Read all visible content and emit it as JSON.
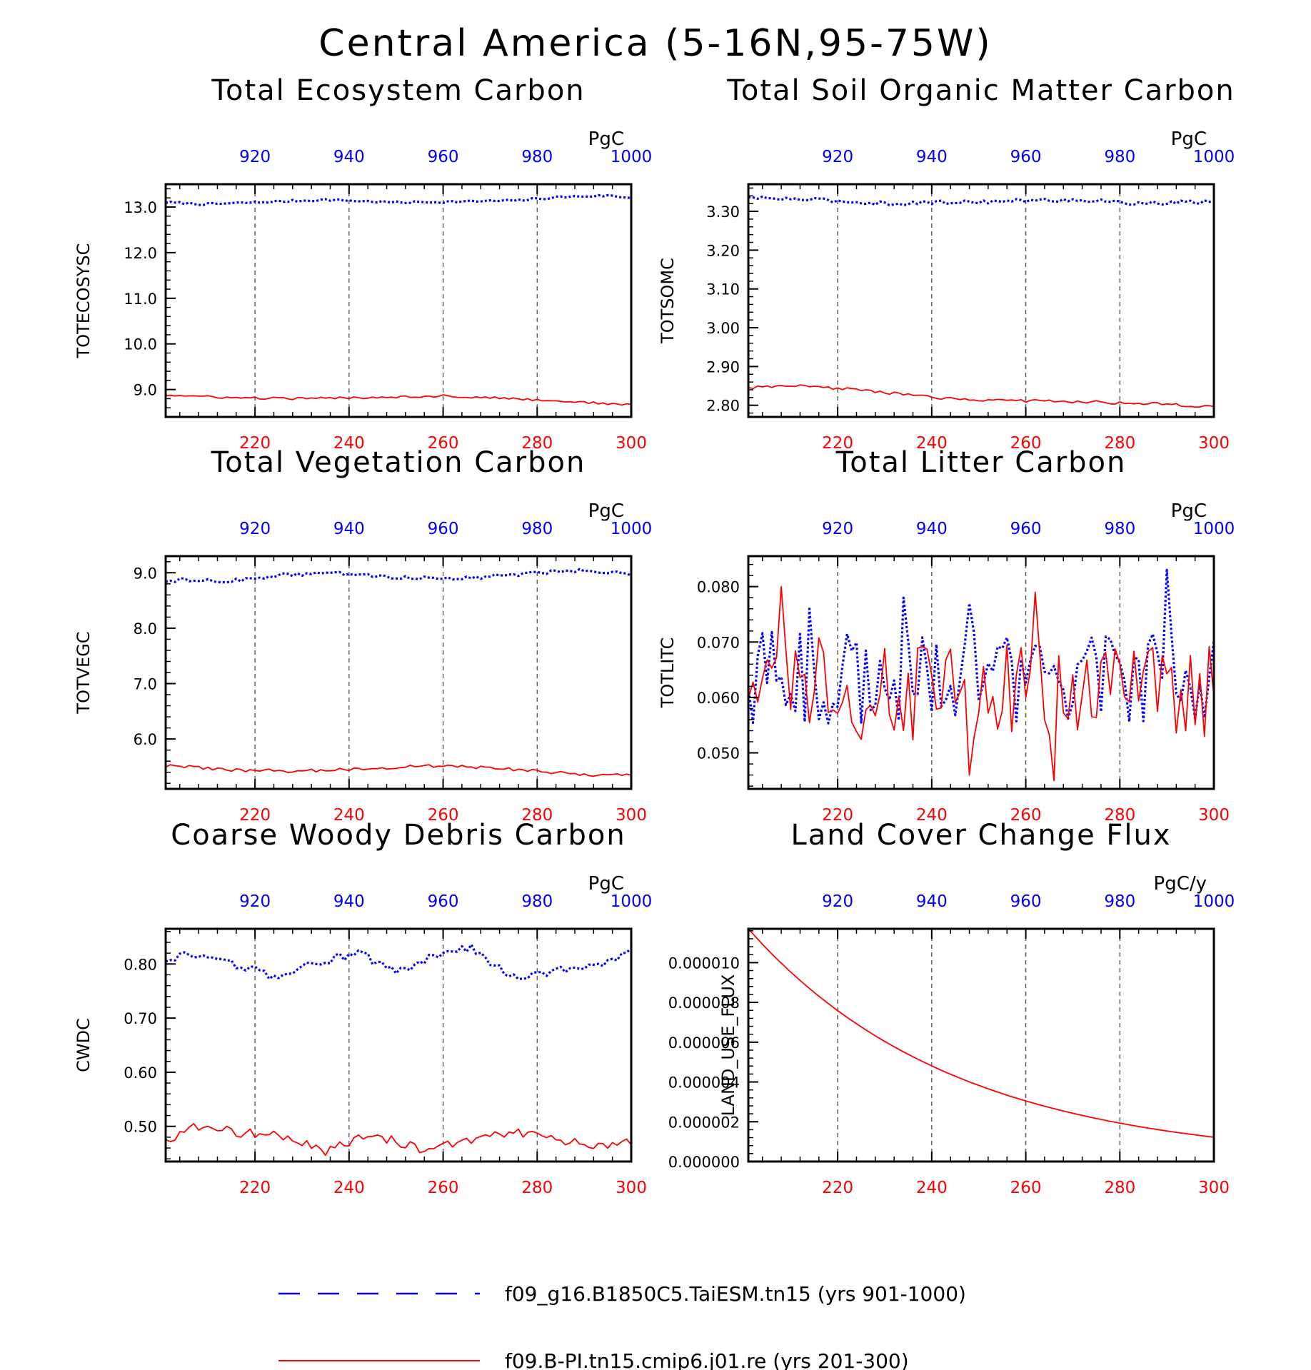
{
  "figure_title": "Central America (5-16N,95-75W)",
  "colors": {
    "case1": "#0000ff",
    "case2": "#ff0000"
  },
  "legend": [
    {
      "label": "f09_g16.B1850C5.TaiESM.tn15 (yrs 901-1000)",
      "color": "#0000ff",
      "dash": "dashed"
    },
    {
      "label": "f09.B-PI.tn15.cmip6.j01.re (yrs 201-300)",
      "color": "#ff0000",
      "dash": "solid"
    }
  ],
  "chart_data": [
    {
      "type": "line",
      "title": "Total Ecosystem Carbon",
      "ylabel": "TOTECOSYSC",
      "unit": "PgC",
      "xlim_bottom": [
        201,
        300
      ],
      "xlim_top": [
        901,
        1000
      ],
      "bottom_ticks": [
        "220",
        "240",
        "260",
        "280",
        "300"
      ],
      "top_ticks": [
        "920",
        "940",
        "960",
        "980",
        "1000"
      ],
      "ylim": [
        8.4,
        13.5
      ],
      "yticks": [
        "9.0",
        "10.0",
        "11.0",
        "12.0",
        "13.0"
      ],
      "ytick_values": [
        9,
        10,
        11,
        12,
        13
      ],
      "grid": "vertical-dashed",
      "series": [
        {
          "color": "#0000ff",
          "dash": "dotted",
          "keyframes": [
            [
              901,
              13.1
            ],
            [
              910,
              13.06
            ],
            [
              920,
              13.1
            ],
            [
              935,
              13.16
            ],
            [
              950,
              13.1
            ],
            [
              965,
              13.12
            ],
            [
              975,
              13.14
            ],
            [
              985,
              13.22
            ],
            [
              995,
              13.25
            ],
            [
              1000,
              13.2
            ]
          ],
          "noise": 0.025
        },
        {
          "color": "#ff0000",
          "dash": "solid",
          "keyframes": [
            [
              201,
              8.88
            ],
            [
              215,
              8.82
            ],
            [
              230,
              8.8
            ],
            [
              245,
              8.83
            ],
            [
              260,
              8.86
            ],
            [
              275,
              8.8
            ],
            [
              290,
              8.72
            ],
            [
              300,
              8.66
            ]
          ],
          "noise": 0.025
        }
      ]
    },
    {
      "type": "line",
      "title": "Total Soil Organic Matter Carbon",
      "ylabel": "TOTSOMC",
      "unit": "PgC",
      "xlim_bottom": [
        201,
        300
      ],
      "xlim_top": [
        901,
        1000
      ],
      "bottom_ticks": [
        "220",
        "240",
        "260",
        "280",
        "300"
      ],
      "top_ticks": [
        "920",
        "940",
        "960",
        "980",
        "1000"
      ],
      "ylim": [
        2.77,
        3.37
      ],
      "yticks": [
        "2.80",
        "2.90",
        "3.00",
        "3.10",
        "3.20",
        "3.30"
      ],
      "ytick_values": [
        2.8,
        2.9,
        3.0,
        3.1,
        3.2,
        3.3
      ],
      "grid": "vertical-dashed",
      "series": [
        {
          "color": "#0000ff",
          "dash": "dotted",
          "keyframes": [
            [
              901,
              3.335
            ],
            [
              915,
              3.33
            ],
            [
              930,
              3.32
            ],
            [
              950,
              3.325
            ],
            [
              970,
              3.33
            ],
            [
              985,
              3.32
            ],
            [
              1000,
              3.325
            ]
          ],
          "noise": 0.005
        },
        {
          "color": "#ff0000",
          "dash": "solid",
          "keyframes": [
            [
              201,
              2.845
            ],
            [
              210,
              2.85
            ],
            [
              225,
              2.84
            ],
            [
              240,
              2.82
            ],
            [
              255,
              2.812
            ],
            [
              270,
              2.81
            ],
            [
              285,
              2.805
            ],
            [
              300,
              2.795
            ]
          ],
          "noise": 0.004
        }
      ]
    },
    {
      "type": "line",
      "title": "Total Vegetation Carbon",
      "ylabel": "TOTVEGC",
      "unit": "PgC",
      "xlim_bottom": [
        201,
        300
      ],
      "xlim_top": [
        901,
        1000
      ],
      "bottom_ticks": [
        "220",
        "240",
        "260",
        "280",
        "300"
      ],
      "top_ticks": [
        "920",
        "940",
        "960",
        "980",
        "1000"
      ],
      "ylim": [
        5.1,
        9.3
      ],
      "yticks": [
        "6.0",
        "7.0",
        "8.0",
        "9.0"
      ],
      "ytick_values": [
        6,
        7,
        8,
        9
      ],
      "grid": "vertical-dashed",
      "series": [
        {
          "color": "#0000ff",
          "dash": "dotted",
          "keyframes": [
            [
              901,
              8.87
            ],
            [
              915,
              8.85
            ],
            [
              925,
              8.95
            ],
            [
              935,
              9.0
            ],
            [
              950,
              8.92
            ],
            [
              965,
              8.9
            ],
            [
              980,
              9.0
            ],
            [
              990,
              9.05
            ],
            [
              1000,
              8.98
            ]
          ],
          "noise": 0.035
        },
        {
          "color": "#ff0000",
          "dash": "solid",
          "keyframes": [
            [
              201,
              5.52
            ],
            [
              215,
              5.44
            ],
            [
              230,
              5.42
            ],
            [
              245,
              5.47
            ],
            [
              260,
              5.52
            ],
            [
              275,
              5.45
            ],
            [
              290,
              5.36
            ],
            [
              300,
              5.34
            ]
          ],
          "noise": 0.03
        }
      ]
    },
    {
      "type": "line",
      "title": "Total Litter Carbon",
      "ylabel": "TOTLITC",
      "unit": "PgC",
      "xlim_bottom": [
        201,
        300
      ],
      "xlim_top": [
        901,
        1000
      ],
      "bottom_ticks": [
        "220",
        "240",
        "260",
        "280",
        "300"
      ],
      "top_ticks": [
        "920",
        "940",
        "960",
        "980",
        "1000"
      ],
      "ylim": [
        0.0435,
        0.0855
      ],
      "yticks": [
        "0.050",
        "0.060",
        "0.070",
        "0.080"
      ],
      "ytick_values": [
        0.05,
        0.06,
        0.07,
        0.08
      ],
      "grid": "vertical-dashed",
      "series": [
        {
          "color": "#0000ff",
          "dash": "dotted",
          "keyframes": [
            [
              901,
              0.0635
            ],
            [
              1000,
              0.0635
            ]
          ],
          "noise": 0.0085,
          "spikes": [
            [
              990,
              0.083
            ],
            [
              934,
              0.078
            ],
            [
              948,
              0.077
            ],
            [
              914,
              0.076
            ]
          ]
        },
        {
          "color": "#ff0000",
          "dash": "solid",
          "keyframes": [
            [
              201,
              0.0615
            ],
            [
              300,
              0.0615
            ]
          ],
          "noise": 0.0095,
          "spikes": [
            [
              208,
              0.08
            ],
            [
              262,
              0.079
            ],
            [
              248,
              0.046
            ],
            [
              266,
              0.045
            ]
          ]
        }
      ]
    },
    {
      "type": "line",
      "title": "Coarse Woody Debris Carbon",
      "ylabel": "CWDC",
      "unit": "PgC",
      "xlim_bottom": [
        201,
        300
      ],
      "xlim_top": [
        901,
        1000
      ],
      "bottom_ticks": [
        "220",
        "240",
        "260",
        "280",
        "300"
      ],
      "top_ticks": [
        "920",
        "940",
        "960",
        "980",
        "1000"
      ],
      "ylim": [
        0.435,
        0.865
      ],
      "yticks": [
        "0.50",
        "0.60",
        "0.70",
        "0.80"
      ],
      "ytick_values": [
        0.5,
        0.6,
        0.7,
        0.8
      ],
      "grid": "vertical-dashed",
      "series": [
        {
          "color": "#0000ff",
          "dash": "dotted",
          "keyframes": [
            [
              901,
              0.8
            ],
            [
              905,
              0.815
            ],
            [
              915,
              0.8
            ],
            [
              925,
              0.775
            ],
            [
              932,
              0.8
            ],
            [
              942,
              0.82
            ],
            [
              950,
              0.785
            ],
            [
              958,
              0.815
            ],
            [
              966,
              0.83
            ],
            [
              975,
              0.775
            ],
            [
              985,
              0.79
            ],
            [
              995,
              0.805
            ],
            [
              1000,
              0.825
            ]
          ],
          "noise": 0.008
        },
        {
          "color": "#ff0000",
          "dash": "solid",
          "keyframes": [
            [
              201,
              0.47
            ],
            [
              206,
              0.5
            ],
            [
              215,
              0.49
            ],
            [
              225,
              0.485
            ],
            [
              235,
              0.455
            ],
            [
              245,
              0.485
            ],
            [
              255,
              0.46
            ],
            [
              265,
              0.475
            ],
            [
              275,
              0.49
            ],
            [
              283,
              0.48
            ],
            [
              290,
              0.465
            ],
            [
              300,
              0.47
            ]
          ],
          "noise": 0.009
        }
      ]
    },
    {
      "type": "line",
      "title": "Land Cover Change Flux",
      "ylabel": "LAND_USE_FLUX",
      "unit": "PgC/y",
      "xlim_bottom": [
        201,
        300
      ],
      "xlim_top": [
        901,
        1000
      ],
      "bottom_ticks": [
        "220",
        "240",
        "260",
        "280",
        "300"
      ],
      "top_ticks": [
        "920",
        "940",
        "960",
        "980",
        "1000"
      ],
      "ylim": [
        0,
        1.17e-05
      ],
      "yticks": [
        "0.000000",
        "0.000002",
        "0.000004",
        "0.000006",
        "0.000008",
        "0.000010"
      ],
      "ytick_values": [
        0,
        2e-06,
        4e-06,
        6e-06,
        8e-06,
        1e-05
      ],
      "grid": "vertical-dashed",
      "series": [
        {
          "color": "#ff0000",
          "dash": "solid",
          "exp_decay": {
            "a": 1.17e-05,
            "k": 0.0228,
            "x0": 201
          }
        }
      ]
    }
  ]
}
